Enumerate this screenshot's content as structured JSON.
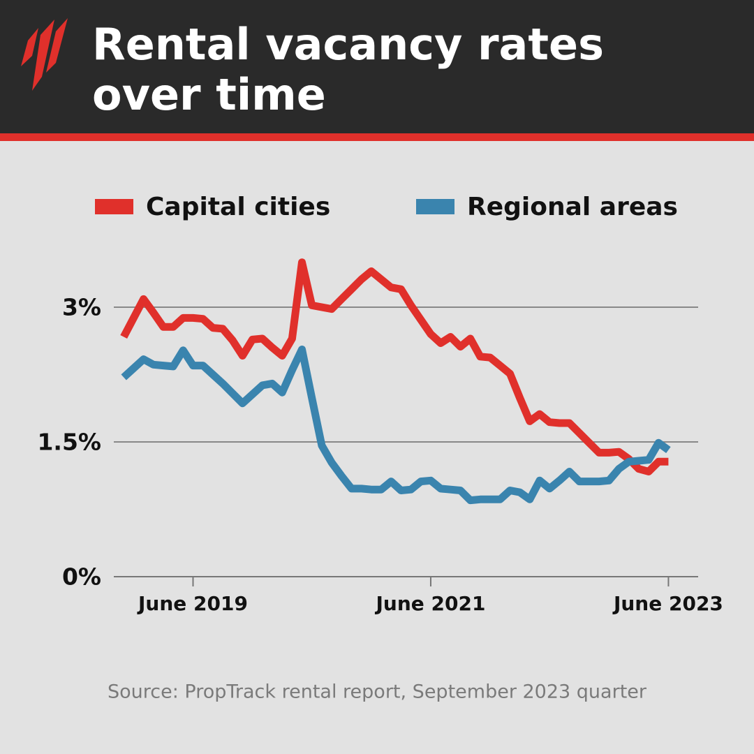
{
  "chart_data": {
    "type": "line",
    "title": "Rental vacancy rates over time",
    "source": "Source: PropTrack rental report, September 2023 quarter",
    "x": [
      "2018-11",
      "2018-12",
      "2019-01",
      "2019-02",
      "2019-03",
      "2019-04",
      "2019-05",
      "2019-06",
      "2019-07",
      "2019-08",
      "2019-09",
      "2019-10",
      "2019-11",
      "2019-12",
      "2020-01",
      "2020-02",
      "2020-03",
      "2020-04",
      "2020-05",
      "2020-06",
      "2020-07",
      "2020-08",
      "2020-09",
      "2020-10",
      "2020-11",
      "2020-12",
      "2021-01",
      "2021-02",
      "2021-03",
      "2021-04",
      "2021-05",
      "2021-06",
      "2021-07",
      "2021-08",
      "2021-09",
      "2021-10",
      "2021-11",
      "2021-12",
      "2022-01",
      "2022-02",
      "2022-03",
      "2022-04",
      "2022-05",
      "2022-06",
      "2022-07",
      "2022-08",
      "2022-09",
      "2022-10",
      "2022-11",
      "2022-12",
      "2023-01",
      "2023-02",
      "2023-03",
      "2023-04",
      "2023-05",
      "2023-06"
    ],
    "series": [
      {
        "name": "Capital cities",
        "color": "#e0302b",
        "values": [
          2.67,
          2.88,
          3.09,
          2.94,
          2.78,
          2.78,
          2.88,
          2.88,
          2.87,
          2.77,
          2.76,
          2.63,
          2.46,
          2.64,
          2.65,
          2.55,
          2.46,
          2.65,
          3.5,
          3.02,
          3.0,
          2.98,
          3.09,
          3.2,
          3.31,
          3.4,
          3.31,
          3.22,
          3.2,
          3.02,
          2.86,
          2.7,
          2.6,
          2.67,
          2.56,
          2.65,
          2.45,
          2.44,
          2.35,
          2.26,
          1.99,
          1.73,
          1.81,
          1.72,
          1.71,
          1.71,
          1.6,
          1.49,
          1.38,
          1.38,
          1.39,
          1.31,
          1.2,
          1.17,
          1.28,
          1.28
        ]
      },
      {
        "name": "Regional areas",
        "color": "#3a84ae",
        "values": [
          2.22,
          2.32,
          2.42,
          2.36,
          2.35,
          2.34,
          2.52,
          2.35,
          2.35,
          2.25,
          2.15,
          2.04,
          1.93,
          2.03,
          2.13,
          2.15,
          2.05,
          2.3,
          2.53,
          1.99,
          1.46,
          1.27,
          1.12,
          0.98,
          0.98,
          0.97,
          0.97,
          1.06,
          0.96,
          0.97,
          1.06,
          1.07,
          0.98,
          0.97,
          0.96,
          0.85,
          0.86,
          0.86,
          0.86,
          0.96,
          0.94,
          0.86,
          1.07,
          0.98,
          1.07,
          1.17,
          1.06,
          1.06,
          1.06,
          1.07,
          1.2,
          1.28,
          1.29,
          1.3,
          1.49,
          1.41
        ]
      }
    ],
    "xlim": [
      "2018-10",
      "2023-09"
    ],
    "xticks": [
      {
        "value": "2019-06",
        "label": "June 2019"
      },
      {
        "value": "2021-06",
        "label": "June 2021"
      },
      {
        "value": "2023-06",
        "label": "June 2023"
      }
    ],
    "ylim": [
      0,
      3
    ],
    "yticks": [
      {
        "value": 0,
        "label": "0%"
      },
      {
        "value": 1.5,
        "label": "1.5%"
      },
      {
        "value": 3,
        "label": "3%"
      }
    ],
    "grid": true
  }
}
